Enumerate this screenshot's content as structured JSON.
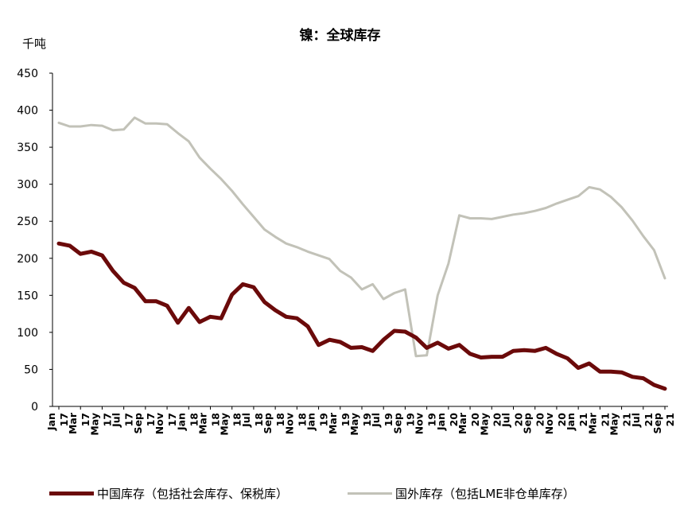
{
  "chart_data": {
    "type": "line",
    "title": "镍：全球库存",
    "unit": "千吨",
    "ylim": [
      0,
      450
    ],
    "yticks": [
      0,
      50,
      100,
      150,
      200,
      250,
      300,
      350,
      400,
      450
    ],
    "grid": false,
    "legend_position": "bottom",
    "x": [
      "Jan 17",
      "Feb 17",
      "Mar 17",
      "Apr 17",
      "May 17",
      "Jun 17",
      "Jul 17",
      "Aug 17",
      "Sep 17",
      "Oct 17",
      "Nov 17",
      "Dec 17",
      "Jan 18",
      "Feb 18",
      "Mar 18",
      "Apr 18",
      "May 18",
      "Jun 18",
      "Jul 18",
      "Aug 18",
      "Sep 18",
      "Oct 18",
      "Nov 18",
      "Dec 18",
      "Jan 19",
      "Feb 19",
      "Mar 19",
      "Apr 19",
      "May 19",
      "Jun 19",
      "Jul 19",
      "Aug 19",
      "Sep 19",
      "Oct 19",
      "Nov 19",
      "Dec 19",
      "Jan 20",
      "Feb 20",
      "Mar 20",
      "Apr 20",
      "May 20",
      "Jun 20",
      "Jul 20",
      "Aug 20",
      "Sep 20",
      "Oct 20",
      "Nov 20",
      "Dec 20",
      "Jan 21",
      "Feb 21",
      "Mar 21",
      "Apr 21",
      "May 21",
      "Jun 21",
      "Jul 21",
      "Aug 21",
      "Sep 21"
    ],
    "tick_labels": [
      {
        "mon": "Jan",
        "yr": "17"
      },
      {
        "mon": "Mar",
        "yr": "17"
      },
      {
        "mon": "May",
        "yr": "17"
      },
      {
        "mon": "Jul",
        "yr": "17"
      },
      {
        "mon": "Sep",
        "yr": "17"
      },
      {
        "mon": "Nov",
        "yr": "17"
      },
      {
        "mon": "Jan",
        "yr": "18"
      },
      {
        "mon": "Mar",
        "yr": "18"
      },
      {
        "mon": "May",
        "yr": "18"
      },
      {
        "mon": "Jul",
        "yr": "18"
      },
      {
        "mon": "Sep",
        "yr": "18"
      },
      {
        "mon": "Nov",
        "yr": "18"
      },
      {
        "mon": "Jan",
        "yr": "19"
      },
      {
        "mon": "Mar",
        "yr": "19"
      },
      {
        "mon": "May",
        "yr": "19"
      },
      {
        "mon": "Jul",
        "yr": "19"
      },
      {
        "mon": "Sep",
        "yr": "19"
      },
      {
        "mon": "Nov",
        "yr": "19"
      },
      {
        "mon": "Jan",
        "yr": "20"
      },
      {
        "mon": "Mar",
        "yr": "20"
      },
      {
        "mon": "May",
        "yr": "20"
      },
      {
        "mon": "Jul",
        "yr": "20"
      },
      {
        "mon": "Sep",
        "yr": "20"
      },
      {
        "mon": "Nov",
        "yr": "20"
      },
      {
        "mon": "Jan",
        "yr": "21"
      },
      {
        "mon": "Mar",
        "yr": "21"
      },
      {
        "mon": "May",
        "yr": "21"
      },
      {
        "mon": "Jul",
        "yr": "21"
      },
      {
        "mon": "Sep",
        "yr": "21"
      }
    ],
    "series": [
      {
        "name": "中国库存（包括社会库存、保税库）",
        "color": "#6b0a0a",
        "values": [
          220,
          217,
          206,
          209,
          204,
          183,
          167,
          160,
          142,
          142,
          136,
          113,
          133,
          114,
          121,
          119,
          151,
          165,
          161,
          141,
          130,
          121,
          119,
          108,
          83,
          90,
          87,
          79,
          80,
          75,
          90,
          102,
          101,
          93,
          79,
          86,
          78,
          83,
          71,
          66,
          67,
          67,
          75,
          76,
          75,
          79,
          71,
          65,
          52,
          58,
          47,
          47,
          46,
          40,
          38,
          29,
          24
        ]
      },
      {
        "name": "国外库存（包括LME非仓单库存）",
        "color": "#c2c2b8",
        "values": [
          383,
          378,
          378,
          380,
          379,
          373,
          374,
          390,
          382,
          382,
          381,
          369,
          358,
          336,
          321,
          307,
          291,
          273,
          256,
          239,
          229,
          220,
          215,
          209,
          204,
          199,
          183,
          174,
          158,
          165,
          145,
          153,
          158,
          68,
          69,
          150,
          193,
          258,
          254,
          254,
          253,
          256,
          259,
          261,
          264,
          268,
          274,
          279,
          284,
          296,
          293,
          283,
          269,
          251,
          230,
          211,
          173
        ]
      }
    ]
  }
}
